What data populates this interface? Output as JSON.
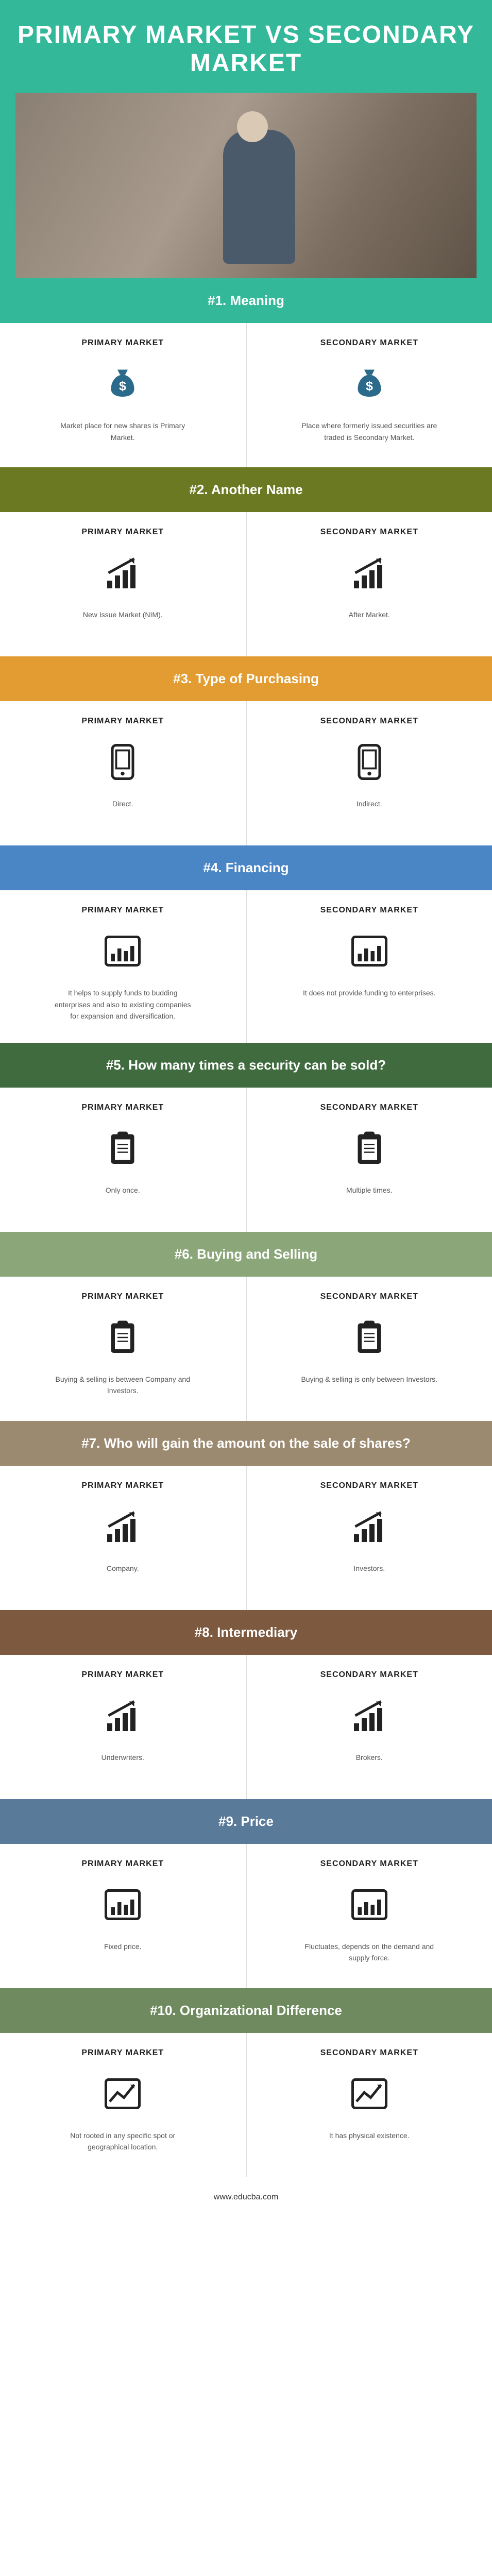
{
  "title": "PRIMARY MARKET VS SECONDARY MARKET",
  "footer_text": "www.educba.com",
  "colors": {
    "teal": "#34b89a",
    "olive": "#6b7a22",
    "orange": "#e29c32",
    "blue": "#4a86c5",
    "dkgreen": "#3f6b3f",
    "sage": "#8ba77a",
    "taupe": "#9b8a6f",
    "brown": "#7d5a3f",
    "steel": "#5a7a9a",
    "moss": "#6f8a5f"
  },
  "col_labels": {
    "left": "PRIMARY MARKET",
    "right": "SECONDARY MARKET"
  },
  "sections": [
    {
      "num": "#1.",
      "title": "Meaning",
      "color_key": "teal",
      "icon": "moneybag",
      "left": "Market place for new shares is Primary Market.",
      "right": "Place where formerly issued securities are traded is Secondary Market."
    },
    {
      "num": "#2.",
      "title": "Another Name",
      "color_key": "olive",
      "icon": "growth",
      "left": "New Issue Market (NIM).",
      "right": "After Market."
    },
    {
      "num": "#3.",
      "title": "Type of Purchasing",
      "color_key": "orange",
      "icon": "device",
      "left": "Direct.",
      "right": "Indirect."
    },
    {
      "num": "#4.",
      "title": "Financing",
      "color_key": "blue",
      "icon": "barchart",
      "left": "It helps to supply funds to budding enterprises and also to existing companies for expansion and diversification.",
      "right": "It does not provide funding to enterprises."
    },
    {
      "num": "#5.",
      "title": "How many times a security can be sold?",
      "color_key": "dkgreen",
      "icon": "clipboard",
      "left": "Only once.",
      "right": "Multiple times."
    },
    {
      "num": "#6.",
      "title": "Buying and Selling",
      "color_key": "sage",
      "icon": "clipboard",
      "left": "Buying & selling is between Company and Investors.",
      "right": "Buying & selling is only between Investors."
    },
    {
      "num": "#7.",
      "title": "Who will gain the amount on the sale of shares?",
      "color_key": "taupe",
      "icon": "growth",
      "left": "Company.",
      "right": "Investors."
    },
    {
      "num": "#8.",
      "title": "Intermediary",
      "color_key": "brown",
      "icon": "growth",
      "left": "Underwriters.",
      "right": "Brokers."
    },
    {
      "num": "#9.",
      "title": "Price",
      "color_key": "steel",
      "icon": "barchart",
      "left": "Fixed price.",
      "right": "Fluctuates, depends on the demand and supply force."
    },
    {
      "num": "#10.",
      "title": "Organizational Difference",
      "color_key": "moss",
      "icon": "linebox",
      "left": "Not rooted in any specific spot or geographical location.",
      "right": "It has physical existence."
    }
  ],
  "icons_svg": {
    "moneybag": "<svg viewBox='0 0 64 64'><path fill='#2b6a8a' d='M24 10h16l-4 8h-8z'/><path fill='#2b6a8a' d='M32 18c10 0 18 10 18 22 0 8-8 12-18 12S14 48 14 40c0-12 8-22 18-22z'/><text x='32' y='42' text-anchor='middle' fill='#fff' font-size='20' font-weight='bold'>$</text></svg>",
    "growth": "<svg viewBox='0 0 64 64'><rect x='8' y='44' width='8' height='12' fill='#222'/><rect x='20' y='36' width='8' height='20' fill='#222'/><rect x='32' y='28' width='8' height='28' fill='#222'/><rect x='44' y='20' width='8' height='36' fill='#222'/><path d='M10 32 L50 10' stroke='#222' stroke-width='4' fill='none'/><path d='M50 10 L42 10 L50 18 Z' fill='#222'/></svg>",
    "device": "<svg viewBox='0 0 64 64'><rect x='16' y='6' width='32' height='52' rx='6' fill='none' stroke='#222' stroke-width='4'/><rect x='22' y='14' width='20' height='28' fill='none' stroke='#222' stroke-width='3'/><circle cx='32' cy='50' r='3' fill='#222'/></svg>",
    "barchart": "<svg viewBox='0 0 64 64'><rect x='6' y='10' width='52' height='44' rx='4' fill='none' stroke='#222' stroke-width='4'/><rect x='14' y='36' width='6' height='12' fill='#222'/><rect x='24' y='28' width='6' height='20' fill='#222'/><rect x='34' y='32' width='6' height='16' fill='#222'/><rect x='44' y='24' width='6' height='24' fill='#222'/></svg>",
    "clipboard": "<svg viewBox='0 0 64 64'><rect x='14' y='10' width='36' height='46' rx='4' fill='#222'/><rect x='20' y='18' width='24' height='32' fill='#fff'/><rect x='24' y='6' width='16' height='10' rx='3' fill='#222'/><line x1='24' y1='26' x2='40' y2='26' stroke='#222' stroke-width='2'/><line x1='24' y1='32' x2='40' y2='32' stroke='#222' stroke-width='2'/><line x1='24' y1='38' x2='40' y2='38' stroke='#222' stroke-width='2'/></svg>",
    "linebox": "<svg viewBox='0 0 64 64'><rect x='6' y='10' width='52' height='44' rx='4' fill='none' stroke='#222' stroke-width='4'/><path d='M12 44 L24 30 L34 38 L50 18' stroke='#222' stroke-width='4' fill='none'/><path d='M50 18 L44 18 L50 24 Z' fill='#222'/></svg>"
  }
}
